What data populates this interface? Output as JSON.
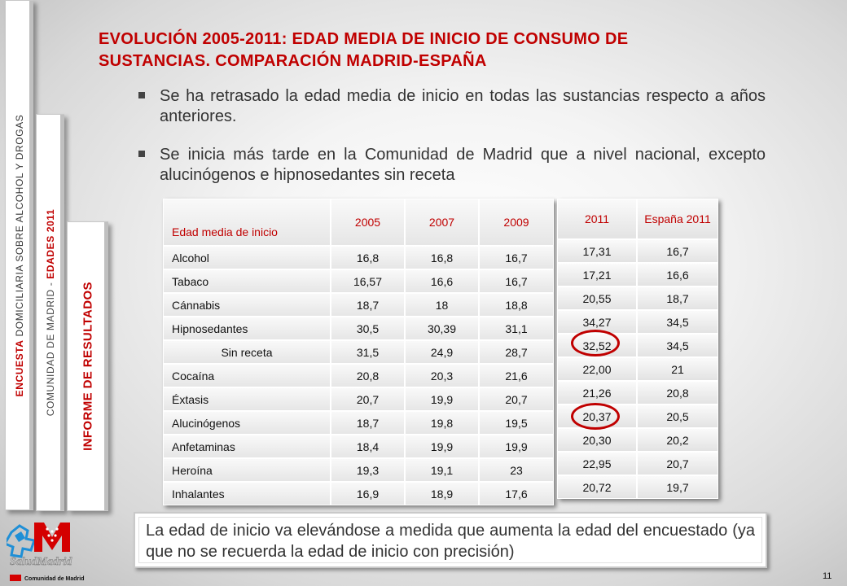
{
  "side_tabs": {
    "tab1": {
      "part1": "ENCUESTA",
      "part2": " DOMICILIARIA SOBRE ALCOHOL Y DROGAS"
    },
    "tab2": {
      "part1": "COMUNIDAD DE MADRID - ",
      "part2": "EDADES 2011"
    },
    "tab3": {
      "label": "INFORME DE RESULTADOS"
    }
  },
  "logo": {
    "brand": "SaludMadrid",
    "footer": "Comunidad de Madrid",
    "colors": {
      "red": "#d40000"
    }
  },
  "title": "EVOLUCIÓN 2005-2011: EDAD MEDIA DE INICIO DE CONSUMO DE SUSTANCIAS. COMPARACIÓN MADRID-ESPAÑA",
  "bullets": [
    "Se ha retrasado la edad media de inicio en todas las sustancias respecto a años anteriores.",
    "Se inicia más tarde en la Comunidad de Madrid que a nivel nacional, excepto alucinógenos e hipnosedantes sin receta"
  ],
  "table": {
    "header": {
      "label": "Edad media de inicio",
      "c2005": "2005",
      "c2007": "2007",
      "c2009": "2009",
      "c2011": "2011",
      "espana": "España 2011"
    },
    "rows": [
      {
        "label": "Alcohol",
        "v2005": "16,8",
        "v2007": "16,8",
        "v2009": "16,7",
        "v2011": "17,31",
        "esp": "16,7"
      },
      {
        "label": "Tabaco",
        "v2005": "16,57",
        "v2007": "16,6",
        "v2009": "16,7",
        "v2011": "17,21",
        "esp": "16,6"
      },
      {
        "label": "Cánnabis",
        "v2005": "18,7",
        "v2007": "18",
        "v2009": "18,8",
        "v2011": "20,55",
        "esp": "18,7"
      },
      {
        "label": "Hipnosedantes",
        "v2005": "30,5",
        "v2007": "30,39",
        "v2009": "31,1",
        "v2011": "34,27",
        "esp": "34,5"
      },
      {
        "label": "Sin receta",
        "v2005": "31,5",
        "v2007": "24,9",
        "v2009": "28,7",
        "v2011": "32,52",
        "esp": "34,5"
      },
      {
        "label": "Cocaína",
        "v2005": "20,8",
        "v2007": "20,3",
        "v2009": "21,6",
        "v2011": "22,00",
        "esp": "21"
      },
      {
        "label": "Éxtasis",
        "v2005": "20,7",
        "v2007": "19,9",
        "v2009": "20,7",
        "v2011": "21,26",
        "esp": "20,8"
      },
      {
        "label": "Alucinógenos",
        "v2005": "18,7",
        "v2007": "19,8",
        "v2009": "19,5",
        "v2011": "20,37",
        "esp": "20,5"
      },
      {
        "label": "Anfetaminas",
        "v2005": "18,4",
        "v2007": "19,9",
        "v2009": "19,9",
        "v2011": "20,30",
        "esp": "20,2"
      },
      {
        "label": "Heroína",
        "v2005": "19,3",
        "v2007": "19,1",
        "v2009": "23",
        "v2011": "22,95",
        "esp": "20,7"
      },
      {
        "label": "Inhalantes",
        "v2005": "16,9",
        "v2007": "18,9",
        "v2009": "17,6",
        "v2011": "20,72",
        "esp": "19,7"
      }
    ]
  },
  "note": "La edad de inicio va elevándose a medida que aumenta la edad del encuestado (ya que no se recuerda la edad de inicio con precisión)",
  "page_number": "11",
  "colors": {
    "accent": "#c00000",
    "text": "#333333"
  }
}
